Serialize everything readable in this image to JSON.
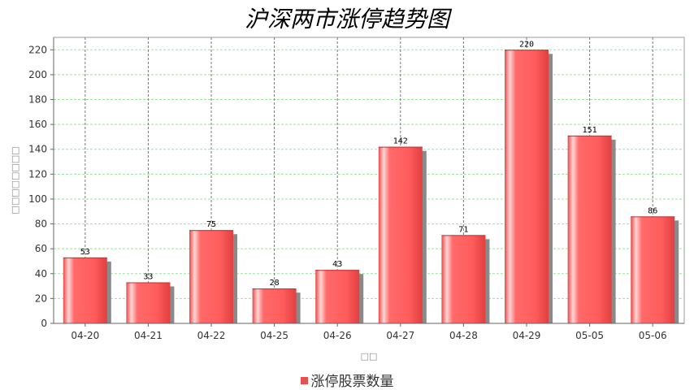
{
  "chart_data": {
    "type": "bar",
    "title": "沪深两市涨停趋势图",
    "xlabel": "□□",
    "ylabel": "□□□□□□□□",
    "categories": [
      "04-20",
      "04-21",
      "04-22",
      "04-25",
      "04-26",
      "04-27",
      "04-28",
      "04-29",
      "05-05",
      "05-06"
    ],
    "series": [
      {
        "name": "涨停股票数量",
        "values": [
          53,
          33,
          75,
          28,
          43,
          142,
          71,
          220,
          151,
          86
        ],
        "color": "#ff5a5a"
      }
    ],
    "ylim": [
      0,
      230
    ],
    "yticks": [
      0,
      20,
      40,
      60,
      80,
      100,
      120,
      140,
      160,
      180,
      200,
      220
    ],
    "grid": true,
    "legend_position": "bottom-center"
  }
}
